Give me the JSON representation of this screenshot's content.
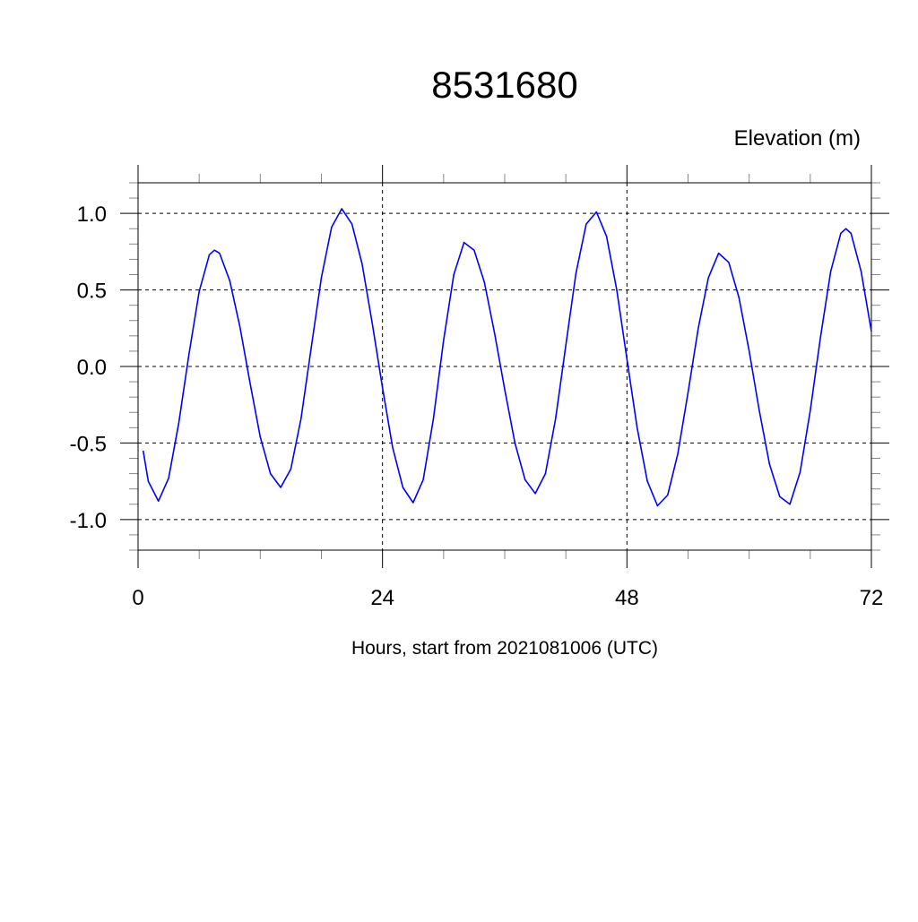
{
  "chart_data": {
    "type": "line",
    "title": "8531680",
    "ylabel": "Elevation (m)",
    "xlabel": "Hours, start from 2021081006 (UTC)",
    "xlim": [
      0,
      72
    ],
    "ylim": [
      -1.2,
      1.2
    ],
    "x_ticks": [
      0,
      24,
      48,
      72
    ],
    "x_tick_labels": [
      "0",
      "24",
      "48",
      "72"
    ],
    "y_ticks": [
      1.0,
      0.5,
      0.0,
      -0.5,
      -1.0
    ],
    "y_tick_labels": [
      "1.0",
      "0.5",
      "0.0",
      "-0.5",
      "-1.0"
    ],
    "grid": true,
    "line_color": "#0000ff",
    "series": [
      {
        "x": [
          0.5,
          1,
          2,
          3,
          4,
          5,
          6,
          7,
          7.5,
          8,
          9,
          10,
          11,
          12,
          13,
          14,
          15,
          16,
          17,
          18,
          19,
          20,
          21,
          22,
          23,
          24,
          25,
          26,
          27,
          28,
          29,
          30,
          31,
          32,
          33,
          34,
          35,
          36,
          37,
          38,
          39,
          40,
          41,
          42,
          43,
          44,
          45,
          46,
          47,
          48,
          49,
          50,
          51,
          52,
          53,
          54,
          55,
          56,
          57,
          58,
          59,
          60,
          61,
          62,
          63,
          64,
          65,
          66,
          67,
          68,
          69,
          69.5,
          70,
          71,
          72
        ],
        "y": [
          -0.55,
          -0.75,
          -0.88,
          -0.73,
          -0.37,
          0.08,
          0.49,
          0.73,
          0.76,
          0.74,
          0.56,
          0.26,
          -0.11,
          -0.46,
          -0.7,
          -0.79,
          -0.67,
          -0.34,
          0.12,
          0.58,
          0.91,
          1.03,
          0.93,
          0.67,
          0.28,
          -0.14,
          -0.53,
          -0.79,
          -0.89,
          -0.74,
          -0.34,
          0.17,
          0.6,
          0.81,
          0.76,
          0.55,
          0.22,
          -0.15,
          -0.5,
          -0.74,
          -0.83,
          -0.7,
          -0.34,
          0.14,
          0.61,
          0.93,
          1.01,
          0.85,
          0.5,
          0.05,
          -0.4,
          -0.75,
          -0.91,
          -0.84,
          -0.57,
          -0.17,
          0.25,
          0.58,
          0.74,
          0.68,
          0.45,
          0.1,
          -0.29,
          -0.64,
          -0.85,
          -0.9,
          -0.69,
          -0.29,
          0.19,
          0.62,
          0.87,
          0.9,
          0.87,
          0.62,
          0.23
        ]
      }
    ]
  }
}
